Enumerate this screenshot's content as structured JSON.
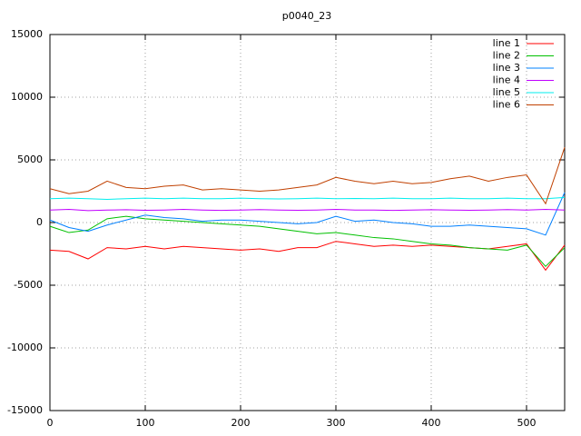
{
  "chart_data": {
    "type": "line",
    "title": "p0040_23",
    "x": [
      0,
      20,
      40,
      60,
      80,
      100,
      120,
      140,
      160,
      180,
      200,
      220,
      240,
      260,
      280,
      300,
      320,
      340,
      360,
      380,
      400,
      420,
      440,
      460,
      480,
      500,
      520,
      540
    ],
    "series": [
      {
        "name": "line 1",
        "color": "#ff0000",
        "values": [
          -2200,
          -2300,
          -2900,
          -2000,
          -2100,
          -1900,
          -2100,
          -1900,
          -2000,
          -2100,
          -2200,
          -2100,
          -2300,
          -2000,
          -2000,
          -1500,
          -1700,
          -1900,
          -1800,
          -1900,
          -1800,
          -1900,
          -2000,
          -2100,
          -1900,
          -1700,
          -3800,
          -1800
        ]
      },
      {
        "name": "line 2",
        "color": "#00c000",
        "values": [
          -300,
          -800,
          -600,
          300,
          500,
          300,
          200,
          100,
          0,
          -100,
          -200,
          -300,
          -500,
          -700,
          -900,
          -800,
          -1000,
          -1200,
          -1300,
          -1500,
          -1700,
          -1800,
          -2000,
          -2100,
          -2200,
          -1800,
          -3500,
          -2000
        ]
      },
      {
        "name": "line 3",
        "color": "#0080ff",
        "values": [
          200,
          -400,
          -700,
          -200,
          200,
          600,
          400,
          300,
          100,
          200,
          200,
          100,
          0,
          -100,
          0,
          500,
          100,
          200,
          0,
          -100,
          -300,
          -300,
          -200,
          -300,
          -400,
          -500,
          -1000,
          2400
        ]
      },
      {
        "name": "line 4",
        "color": "#c000ff",
        "values": [
          1000,
          1050,
          950,
          1000,
          1020,
          980,
          1000,
          1050,
          1000,
          970,
          1000,
          1030,
          1000,
          980,
          1000,
          1050,
          1000,
          1000,
          970,
          1000,
          1020,
          1000,
          980,
          1000,
          1030,
          1000,
          1050,
          1000
        ]
      },
      {
        "name": "line 5",
        "color": "#00eeee",
        "values": [
          1900,
          1950,
          1900,
          1850,
          1900,
          1950,
          1900,
          1950,
          1900,
          1900,
          1950,
          1900,
          1880,
          1900,
          1950,
          1900,
          1920,
          1900,
          1950,
          1900,
          1900,
          1950,
          1900,
          1900,
          1950,
          1900,
          1900,
          2000
        ]
      },
      {
        "name": "line 6",
        "color": "#c04000",
        "values": [
          2700,
          2300,
          2500,
          3300,
          2800,
          2700,
          2900,
          3000,
          2600,
          2700,
          2600,
          2500,
          2600,
          2800,
          3000,
          3600,
          3300,
          3100,
          3300,
          3100,
          3200,
          3500,
          3700,
          3300,
          3600,
          3800,
          1500,
          6000
        ]
      }
    ],
    "xlim": [
      0,
      540
    ],
    "ylim": [
      -15000,
      15000
    ],
    "xticks": [
      0,
      100,
      200,
      300,
      400,
      500
    ],
    "yticks": [
      -15000,
      -10000,
      -5000,
      0,
      5000,
      10000,
      15000
    ],
    "grid": true,
    "legend": "top-right"
  }
}
